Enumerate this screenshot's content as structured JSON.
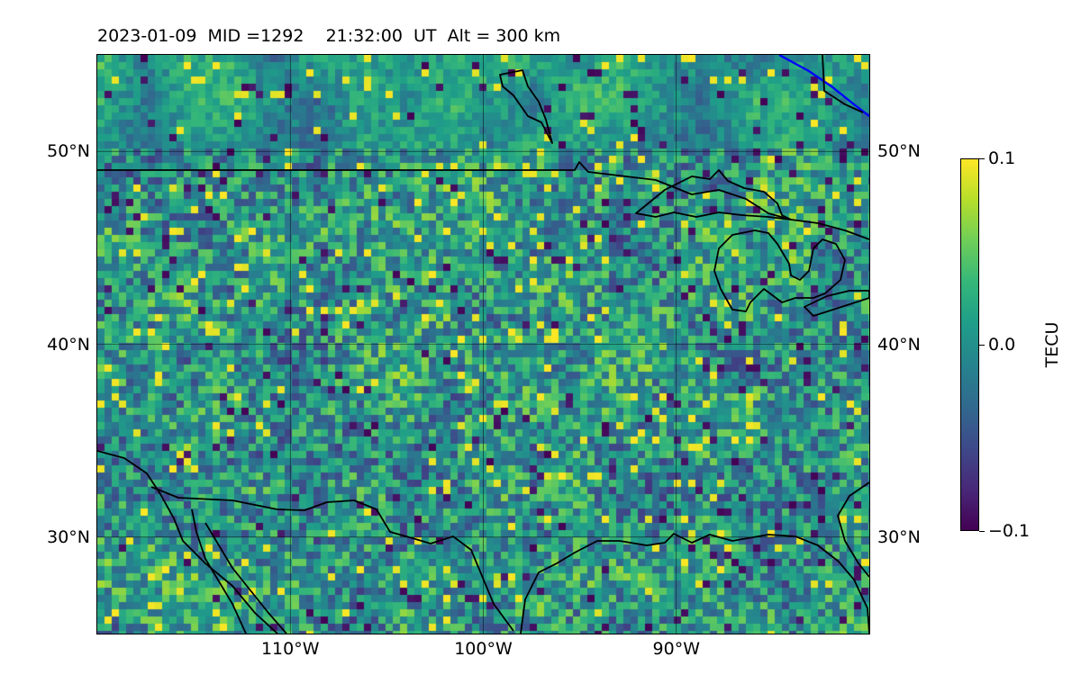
{
  "title": "2023-01-09  MID =1292    21:32:00  UT  Alt = 300 km",
  "map": {
    "projection": "plate-carree",
    "lon_range": [
      -120,
      -80
    ],
    "lat_range": [
      25,
      55
    ],
    "field": "TEC perturbation",
    "colormap": "viridis",
    "gridlines": true,
    "lat_ticks": [
      {
        "value": 50,
        "label": "50°N"
      },
      {
        "value": 40,
        "label": "40°N"
      },
      {
        "value": 30,
        "label": "30°N"
      }
    ],
    "lon_ticks": [
      {
        "value": -110,
        "label": "110°W"
      },
      {
        "value": -100,
        "label": "100°W"
      },
      {
        "value": -90,
        "label": "90°W"
      }
    ],
    "coastline_color": "#000000",
    "terminator_color": "#0000ff"
  },
  "colorbar": {
    "label": "TECU",
    "min": -0.1,
    "max": 0.1,
    "ticks": [
      {
        "value": 0.1,
        "label": "0.1"
      },
      {
        "value": 0.0,
        "label": "0.0"
      },
      {
        "value": -0.1,
        "label": "−0.1"
      }
    ]
  }
}
